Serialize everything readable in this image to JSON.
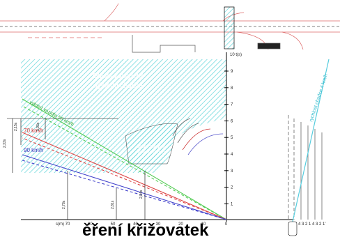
{
  "diagram": {
    "area_label_big": [
      "Oblast zakrytého",
      "výhledu chodce"
    ],
    "area_label_small": [
      "Oblast zakrytého",
      "výhledu chodce"
    ],
    "speed_labels": [
      "výhled vozidla 50 km/h",
      "70 km/h",
      "90 km/h"
    ],
    "time_axis_label": "10 t(s)",
    "time_ticks": [
      "9",
      "8",
      "7",
      "6",
      "5",
      "4",
      "3",
      "2",
      "1"
    ],
    "distance_axis_label": "s(m)",
    "distance_ticks": [
      "70",
      "60",
      "50",
      "40",
      "30",
      "20",
      "10",
      "0"
    ],
    "left_dimensions": [
      "2,33s",
      "2,15s",
      "1,93s"
    ],
    "bottom_dimensions": [
      "2,78s",
      "2,81s",
      "2,84s"
    ],
    "pedestrian_label": "rychlost chodce 4 km/h",
    "lane_numbers": "4 3 2 1 4 3 2 1'",
    "footer_heading": "ěření křižovatek"
  }
}
